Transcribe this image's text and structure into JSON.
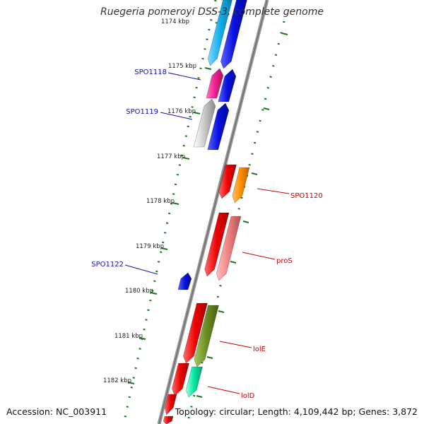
{
  "title": "Ruegeria pomeroyi DSS-3, complete genome",
  "accession": "Accession: NC_003911",
  "topology": "Topology: circular; Length: 4,109,442 bp; Genes: 3,872",
  "colors": {
    "backbone": "#8c8c8c",
    "tick": "#1a7a1a",
    "label_reverse": "#1010b0",
    "label_forward": "#cc0000"
  },
  "scale_labels": [
    "1174 kbp",
    "1175 kbp",
    "1176 kbp",
    "1177 kbp",
    "1178 kbp",
    "1179 kbp",
    "1180 kbp",
    "1181 kbp",
    "1182 kbp"
  ],
  "gene_labels": [
    {
      "text": "SPO1118",
      "strand": "reverse"
    },
    {
      "text": "SPO1119",
      "strand": "reverse"
    },
    {
      "text": "SPO1120",
      "strand": "forward"
    },
    {
      "text": "proS",
      "strand": "forward"
    },
    {
      "text": "SPO1122",
      "strand": "reverse"
    },
    {
      "text": "lolE",
      "strand": "forward"
    },
    {
      "text": "lolD",
      "strand": "forward"
    }
  ],
  "features": [
    {
      "ring": "cog",
      "color": "#1ab0e8",
      "strand": "forward"
    },
    {
      "ring": "cds",
      "color": "#0a12e0",
      "strand": "forward"
    },
    {
      "ring": "cog",
      "color": "#ee2290",
      "strand": "reverse"
    },
    {
      "ring": "cds",
      "color": "#0a12e0",
      "strand": "reverse"
    },
    {
      "ring": "cog",
      "color": "#c0c0c0",
      "strand": "reverse"
    },
    {
      "ring": "cds",
      "color": "#0a12e0",
      "strand": "reverse"
    },
    {
      "ring": "cds",
      "color": "#ee0000",
      "strand": "forward"
    },
    {
      "ring": "cog",
      "color": "#ff8c00",
      "strand": "forward"
    },
    {
      "ring": "cds",
      "color": "#ee0000",
      "strand": "forward"
    },
    {
      "ring": "cog",
      "color": "#f08080",
      "strand": "forward"
    },
    {
      "ring": "cds",
      "color": "#0a12e0",
      "strand": "reverse"
    },
    {
      "ring": "cds",
      "color": "#ee0000",
      "strand": "forward"
    },
    {
      "ring": "cog",
      "color": "#6b8e23",
      "strand": "forward"
    },
    {
      "ring": "cds",
      "color": "#ee0000",
      "strand": "forward"
    },
    {
      "ring": "cog",
      "color": "#00e8a0",
      "strand": "forward"
    },
    {
      "ring": "cds",
      "color": "#ee0000",
      "strand": "forward"
    },
    {
      "ring": "cds",
      "color": "#ee0000",
      "strand": "forward"
    }
  ]
}
